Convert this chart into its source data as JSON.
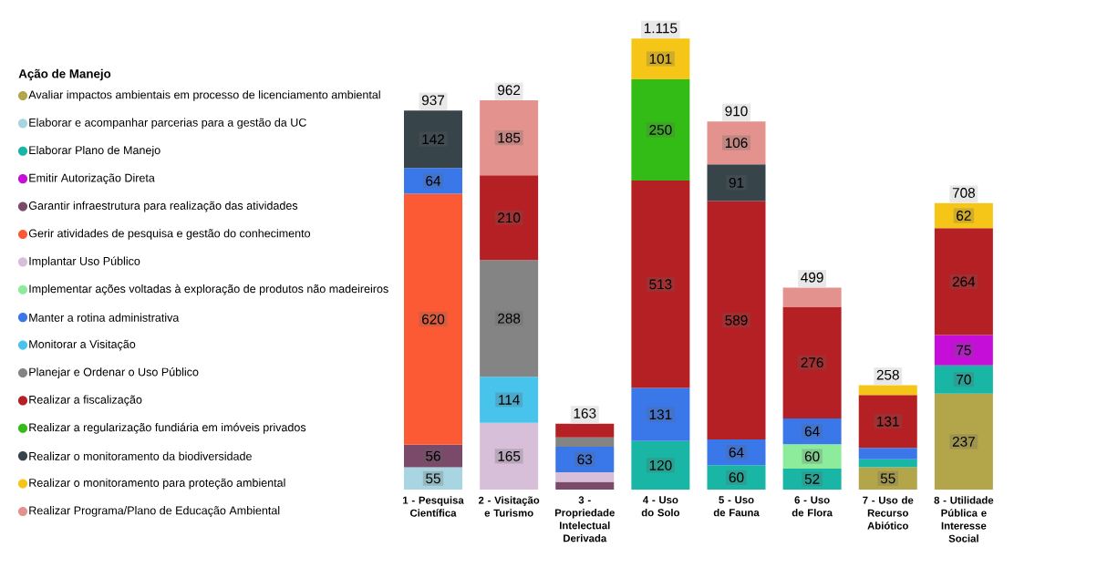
{
  "chart_data": {
    "type": "bar",
    "stacked": true,
    "legend": "left",
    "legend_title": "Ação de Manejo",
    "categories": [
      "1 - Pesquisa Científica",
      "2 - Visitação e Turismo",
      "3 - Propriedade Intelectual Derivada",
      "4 - Uso do Solo",
      "5 - Uso de Fauna",
      "6 - Uso de Flora",
      "7 - Uso de Recurso Abiótico",
      "8 - Utilidade Pública e Interesse Social"
    ],
    "totals": [
      "937",
      "962",
      "163",
      "1.115",
      "910",
      "499",
      "258",
      "708"
    ],
    "series": [
      {
        "name": "Avaliar impactos ambientais em processo de licenciamento ambiental",
        "color": "#b3a64a",
        "values": [
          null,
          null,
          null,
          null,
          null,
          null,
          55,
          237
        ],
        "value_labels": [
          null,
          null,
          null,
          null,
          null,
          null,
          "55",
          "237"
        ]
      },
      {
        "name": "Elaborar e acompanhar parcerias para a gestão da UC",
        "color": "#a8d5e2",
        "values": [
          55,
          null,
          null,
          null,
          null,
          null,
          null,
          null
        ],
        "value_labels": [
          "55",
          null,
          null,
          null,
          null,
          null,
          null,
          null
        ]
      },
      {
        "name": "Elaborar Plano de Manejo",
        "color": "#19b5a5",
        "values": [
          null,
          null,
          null,
          120,
          60,
          52,
          20,
          70
        ],
        "value_labels": [
          null,
          null,
          null,
          "120",
          "60",
          "52",
          null,
          "70"
        ]
      },
      {
        "name": "Emitir Autorização Direta",
        "color": "#c50ed8",
        "values": [
          null,
          null,
          null,
          null,
          null,
          null,
          null,
          75
        ],
        "value_labels": [
          null,
          null,
          null,
          null,
          null,
          null,
          null,
          "75"
        ]
      },
      {
        "name": "Garantir infraestrutura para realização das atividades",
        "color": "#7b4a6a",
        "values": [
          56,
          null,
          19,
          null,
          null,
          null,
          null,
          null
        ],
        "value_labels": [
          "56",
          null,
          null,
          null,
          null,
          null,
          null,
          null
        ]
      },
      {
        "name": "Gerir atividades de pesquisa e gestão do conhecimento",
        "color": "#fc5a35",
        "values": [
          620,
          null,
          null,
          null,
          null,
          null,
          null,
          null
        ],
        "value_labels": [
          "620",
          null,
          null,
          null,
          null,
          null,
          null,
          null
        ]
      },
      {
        "name": "Implantar Uso Público",
        "color": "#d7bfd9",
        "values": [
          null,
          165,
          24,
          null,
          null,
          null,
          null,
          null
        ],
        "value_labels": [
          null,
          "165",
          null,
          null,
          null,
          null,
          null,
          null
        ]
      },
      {
        "name": "Implementar ações voltadas à exploração de produtos não madeireiros",
        "color": "#8cec9c",
        "values": [
          null,
          null,
          null,
          null,
          null,
          60,
          null,
          null
        ],
        "value_labels": [
          null,
          null,
          null,
          null,
          null,
          "60",
          null,
          null
        ]
      },
      {
        "name": "Manter a rotina administrativa",
        "color": "#3a78ea",
        "values": [
          64,
          null,
          63,
          131,
          64,
          64,
          28,
          null
        ],
        "value_labels": [
          "64",
          null,
          "63",
          "131",
          "64",
          "64",
          null,
          null
        ]
      },
      {
        "name": "Monitorar a Visitação",
        "color": "#47c3ec",
        "values": [
          null,
          114,
          null,
          null,
          null,
          null,
          null,
          null
        ],
        "value_labels": [
          null,
          "114",
          null,
          null,
          null,
          null,
          null,
          null
        ]
      },
      {
        "name": "Planejar e Ordenar o Uso Público",
        "color": "#848484",
        "values": [
          null,
          288,
          23,
          null,
          null,
          null,
          null,
          null
        ],
        "value_labels": [
          null,
          "288",
          null,
          null,
          null,
          null,
          null,
          null
        ]
      },
      {
        "name": "Realizar a fiscalização",
        "color": "#b42024",
        "values": [
          null,
          210,
          34,
          513,
          589,
          276,
          131,
          264
        ],
        "value_labels": [
          null,
          "210",
          null,
          "513",
          "589",
          "276",
          "131",
          "264"
        ]
      },
      {
        "name": "Realizar a regularização fundiária em imóveis privados",
        "color": "#33bb16",
        "values": [
          null,
          null,
          null,
          250,
          null,
          null,
          null,
          null
        ],
        "value_labels": [
          null,
          null,
          null,
          "250",
          null,
          null,
          null,
          null
        ]
      },
      {
        "name": "Realizar o monitoramento da biodiversidade",
        "color": "#37454a",
        "values": [
          142,
          null,
          null,
          null,
          91,
          null,
          null,
          null
        ],
        "value_labels": [
          "142",
          null,
          null,
          null,
          "91",
          null,
          null,
          null
        ]
      },
      {
        "name": "Realizar o monitoramento para proteção ambiental",
        "color": "#f5c518",
        "values": [
          null,
          null,
          null,
          101,
          null,
          null,
          24,
          62
        ],
        "value_labels": [
          null,
          null,
          null,
          "101",
          null,
          null,
          null,
          "62"
        ]
      },
      {
        "name": "Realizar Programa/Plano de Educação Ambiental",
        "color": "#e3928e",
        "values": [
          null,
          185,
          null,
          null,
          106,
          47,
          null,
          null
        ],
        "value_labels": [
          null,
          "185",
          null,
          null,
          "106",
          null,
          null,
          null
        ]
      }
    ]
  }
}
